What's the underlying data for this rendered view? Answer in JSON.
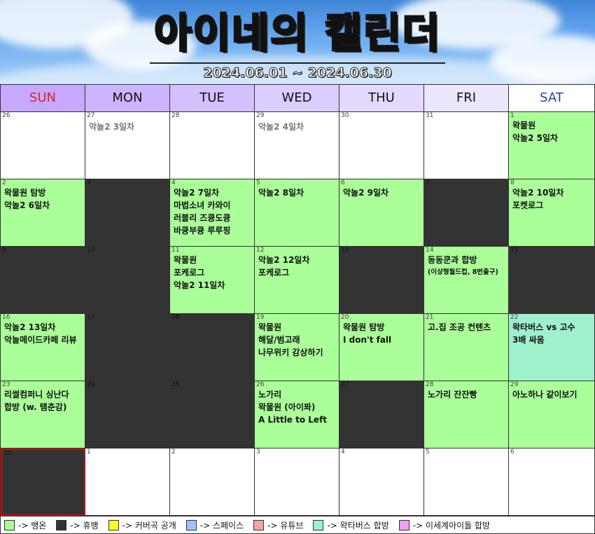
{
  "header": {
    "title_highlight": "아이네",
    "title_rest": "의 캘린더",
    "date_range": "2024.06.01 ~ 2024.06.30"
  },
  "weekdays": [
    "SUN",
    "MON",
    "TUE",
    "WED",
    "THU",
    "FRI",
    "SAT"
  ],
  "weeks": [
    [
      {
        "day": "26",
        "type": "blank",
        "muted": false,
        "events": []
      },
      {
        "day": "27",
        "type": "blank",
        "muted": true,
        "events": [
          "악놀2 3일차"
        ]
      },
      {
        "day": "28",
        "type": "blank",
        "muted": false,
        "events": []
      },
      {
        "day": "29",
        "type": "blank",
        "muted": true,
        "events": [
          "악놀2 4일차"
        ]
      },
      {
        "day": "30",
        "type": "blank",
        "muted": false,
        "events": []
      },
      {
        "day": "31",
        "type": "blank",
        "muted": false,
        "events": []
      },
      {
        "day": "1",
        "type": "green",
        "muted": false,
        "events": [
          "왁물원",
          "악놀2 5일차"
        ]
      }
    ],
    [
      {
        "day": "2",
        "type": "green",
        "muted": false,
        "events": [
          "왁물원 탐방",
          "악놀2 6일차"
        ]
      },
      {
        "day": "3",
        "type": "dark",
        "muted": false,
        "events": []
      },
      {
        "day": "4",
        "type": "green",
        "muted": false,
        "events": [
          "악놀2 7일차",
          "마법소녀 카와이",
          "러블리 즈큥도큥",
          "바큥부큥 루루핑"
        ]
      },
      {
        "day": "5",
        "type": "green",
        "muted": false,
        "events": [
          "악놀2 8일차"
        ]
      },
      {
        "day": "6",
        "type": "green",
        "muted": false,
        "events": [
          "악놀2 9일차"
        ]
      },
      {
        "day": "7",
        "type": "dark",
        "muted": false,
        "events": []
      },
      {
        "day": "8",
        "type": "green",
        "muted": false,
        "events": [
          "악놀2 10일차",
          "포켓로그"
        ]
      }
    ],
    [
      {
        "day": "9",
        "type": "dark",
        "muted": false,
        "events": []
      },
      {
        "day": "10",
        "type": "dark",
        "muted": false,
        "events": []
      },
      {
        "day": "11",
        "type": "green",
        "muted": false,
        "events": [
          "왁물원",
          "포케로그",
          "악놀2 11일차"
        ]
      },
      {
        "day": "12",
        "type": "green",
        "muted": false,
        "events": [
          "악놀2 12일차",
          "포케로그"
        ]
      },
      {
        "day": "13",
        "type": "dark",
        "muted": false,
        "events": []
      },
      {
        "day": "14",
        "type": "green",
        "muted": false,
        "events": [
          "동동쿤과 합방"
        ],
        "note": "(이상형월드컵, 8번출구)"
      },
      {
        "day": "15",
        "type": "dark",
        "muted": false,
        "events": []
      }
    ],
    [
      {
        "day": "16",
        "type": "green",
        "muted": false,
        "events": [
          "악놀2 13일차",
          "악놀메이드카페 리뷰"
        ]
      },
      {
        "day": "17",
        "type": "dark",
        "muted": false,
        "events": []
      },
      {
        "day": "18",
        "type": "dark",
        "muted": false,
        "events": []
      },
      {
        "day": "19",
        "type": "green",
        "muted": false,
        "events": [
          "왁물원",
          "해달/범고래",
          "나무위키 감상하기"
        ]
      },
      {
        "day": "20",
        "type": "green",
        "muted": false,
        "events": [
          "왁물원 탐방",
          "I don't fall"
        ]
      },
      {
        "day": "21",
        "type": "green",
        "muted": false,
        "events": [
          "고.집 조공 컨텐츠"
        ]
      },
      {
        "day": "22",
        "type": "mint",
        "muted": false,
        "events": [
          "왁타버스 vs 고수",
          "3배 싸움"
        ]
      }
    ],
    [
      {
        "day": "23",
        "type": "green",
        "muted": false,
        "events": [
          "리썰컴퍼니 싱난다",
          "합방 (w. 탬춘감)"
        ]
      },
      {
        "day": "24",
        "type": "dark",
        "muted": false,
        "events": []
      },
      {
        "day": "25",
        "type": "dark",
        "muted": false,
        "events": []
      },
      {
        "day": "26",
        "type": "green",
        "muted": false,
        "events": [
          "노가리",
          "왁물원 (아이퐈)",
          "A Little to Left"
        ]
      },
      {
        "day": "27",
        "type": "dark",
        "muted": false,
        "events": []
      },
      {
        "day": "28",
        "type": "green",
        "muted": false,
        "events": [
          "노가리 잔잔빵"
        ]
      },
      {
        "day": "29",
        "type": "green",
        "muted": false,
        "events": [
          "아노하나 같이보기"
        ]
      }
    ],
    [
      {
        "day": "30",
        "type": "dark",
        "today": true,
        "muted": false,
        "events": []
      },
      {
        "day": "1",
        "type": "blank",
        "muted": false,
        "events": []
      },
      {
        "day": "2",
        "type": "blank",
        "muted": false,
        "events": []
      },
      {
        "day": "3",
        "type": "blank",
        "muted": false,
        "events": []
      },
      {
        "day": "4",
        "type": "blank",
        "muted": false,
        "events": []
      },
      {
        "day": "5",
        "type": "blank",
        "muted": false,
        "events": []
      },
      {
        "day": "6",
        "type": "blank",
        "muted": false,
        "events": []
      }
    ]
  ],
  "legend": [
    {
      "label": "-> 뱅온",
      "color": "#aaff99"
    },
    {
      "label": "-> 휴뱅",
      "color": "#333333"
    },
    {
      "label": "-> 커버곡 공개",
      "color": "#ffff22"
    },
    {
      "label": "-> 스페이스",
      "color": "#99c4f5"
    },
    {
      "label": "-> 유튜브",
      "color": "#f5a3a3"
    },
    {
      "label": "-> 왁타버스 합방",
      "color": "#9ff0cc"
    },
    {
      "label": "-> 이세계아이돌 합방",
      "color": "#f0a0ee"
    }
  ],
  "colors": {
    "sunday": "#e02020",
    "saturday": "#2a3fa8",
    "today_border": "#c01010"
  }
}
